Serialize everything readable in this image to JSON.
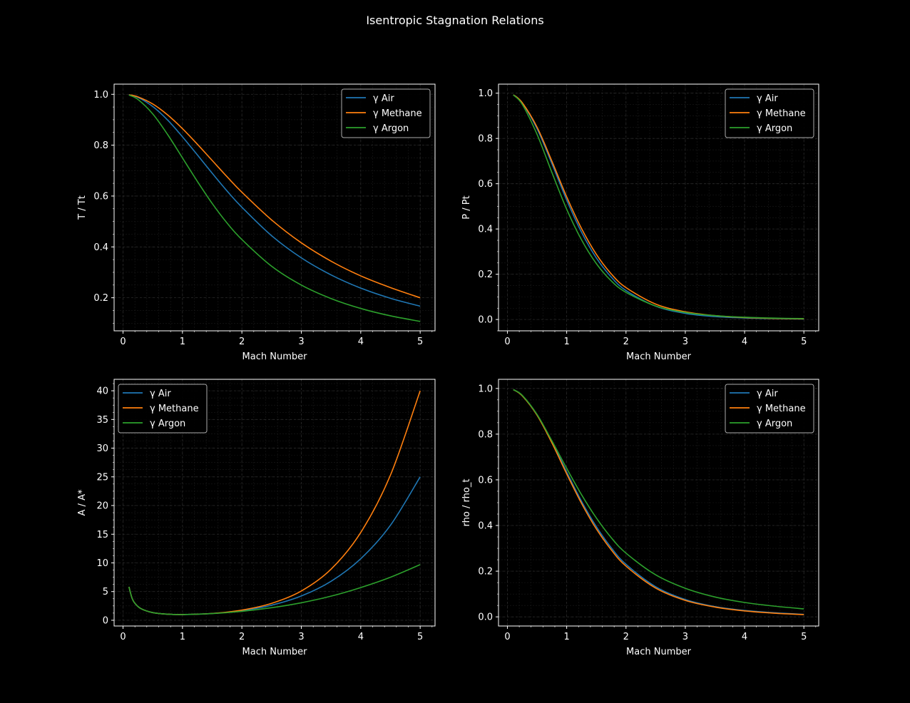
{
  "figure_title": "Isentropic Stagnation Relations",
  "colors": {
    "background": "#000000",
    "foreground": "#ffffff",
    "grid_major": "#2a2a2a",
    "grid_minor": "#1a1a1a",
    "series": [
      "#1f77b4",
      "#ff7f0e",
      "#2ca02c"
    ]
  },
  "chart_data": [
    {
      "type": "line",
      "title": "",
      "xlabel": "Mach Number",
      "ylabel": "T / Tt",
      "xlim": [
        -0.15,
        5.25
      ],
      "ylim": [
        0.07,
        1.04
      ],
      "xticks": [
        0,
        1,
        2,
        3,
        4,
        5
      ],
      "xtick_labels": [
        "0",
        "1",
        "2",
        "3",
        "4",
        "5"
      ],
      "yticks": [
        0.2,
        0.4,
        0.6,
        0.8,
        1.0
      ],
      "ytick_labels": [
        "0.2",
        "0.4",
        "0.6",
        "0.8",
        "1.0"
      ],
      "legend_position": "top-right",
      "grid": true,
      "x": [
        0.1,
        0.25,
        0.5,
        0.75,
        1.0,
        1.25,
        1.5,
        1.75,
        2.0,
        2.5,
        3.0,
        3.5,
        4.0,
        4.5,
        5.0
      ],
      "series": [
        {
          "name": "γ Air",
          "values": [
            0.998,
            0.988,
            0.952,
            0.899,
            0.833,
            0.762,
            0.69,
            0.62,
            0.556,
            0.444,
            0.357,
            0.29,
            0.238,
            0.198,
            0.167
          ]
        },
        {
          "name": "γ Methane",
          "values": [
            0.998,
            0.99,
            0.962,
            0.919,
            0.865,
            0.804,
            0.74,
            0.676,
            0.615,
            0.506,
            0.416,
            0.344,
            0.286,
            0.24,
            0.2
          ]
        },
        {
          "name": "γ Argon",
          "values": [
            0.997,
            0.98,
            0.923,
            0.842,
            0.75,
            0.658,
            0.571,
            0.494,
            0.429,
            0.324,
            0.25,
            0.197,
            0.158,
            0.129,
            0.107
          ]
        }
      ]
    },
    {
      "type": "line",
      "title": "",
      "xlabel": "Mach Number",
      "ylabel": "P / Pt",
      "xlim": [
        -0.15,
        5.25
      ],
      "ylim": [
        -0.05,
        1.04
      ],
      "xticks": [
        0,
        1,
        2,
        3,
        4,
        5
      ],
      "xtick_labels": [
        "0",
        "1",
        "2",
        "3",
        "4",
        "5"
      ],
      "yticks": [
        0.0,
        0.2,
        0.4,
        0.6,
        0.8,
        1.0
      ],
      "ytick_labels": [
        "0.0",
        "0.2",
        "0.4",
        "0.6",
        "0.8",
        "1.0"
      ],
      "legend_position": "top-right",
      "grid": true,
      "x": [
        0.1,
        0.25,
        0.5,
        0.75,
        1.0,
        1.25,
        1.5,
        1.75,
        2.0,
        2.5,
        3.0,
        3.5,
        4.0,
        4.5,
        5.0
      ],
      "series": [
        {
          "name": "γ Air",
          "values": [
            0.993,
            0.957,
            0.843,
            0.689,
            0.528,
            0.386,
            0.272,
            0.188,
            0.128,
            0.059,
            0.027,
            0.013,
            0.007,
            0.004,
            0.002
          ]
        },
        {
          "name": "γ Methane",
          "values": [
            0.993,
            0.958,
            0.85,
            0.7,
            0.542,
            0.402,
            0.288,
            0.202,
            0.141,
            0.068,
            0.034,
            0.017,
            0.009,
            0.005,
            0.003
          ]
        },
        {
          "name": "γ Argon",
          "values": [
            0.992,
            0.951,
            0.818,
            0.65,
            0.487,
            0.352,
            0.247,
            0.171,
            0.12,
            0.06,
            0.031,
            0.017,
            0.01,
            0.006,
            0.004
          ]
        }
      ]
    },
    {
      "type": "line",
      "title": "",
      "xlabel": "Mach Number",
      "ylabel": "A / A*",
      "xlim": [
        -0.15,
        5.25
      ],
      "ylim": [
        -1.0,
        42.0
      ],
      "xticks": [
        0,
        1,
        2,
        3,
        4,
        5
      ],
      "xtick_labels": [
        "0",
        "1",
        "2",
        "3",
        "4",
        "5"
      ],
      "yticks": [
        0,
        5,
        10,
        15,
        20,
        25,
        30,
        35,
        40
      ],
      "ytick_labels": [
        "0",
        "5",
        "10",
        "15",
        "20",
        "25",
        "30",
        "35",
        "40"
      ],
      "legend_position": "top-left",
      "grid": true,
      "x": [
        0.1,
        0.15,
        0.2,
        0.3,
        0.5,
        0.75,
        1.0,
        1.5,
        2.0,
        2.5,
        3.0,
        3.5,
        4.0,
        4.5,
        5.0
      ],
      "series": [
        {
          "name": "γ Air",
          "values": [
            5.82,
            3.91,
            2.96,
            2.04,
            1.34,
            1.06,
            1.0,
            1.18,
            1.69,
            2.63,
            4.23,
            6.79,
            10.72,
            16.56,
            25.0
          ]
        },
        {
          "name": "γ Methane",
          "values": [
            5.82,
            3.91,
            2.96,
            2.04,
            1.34,
            1.06,
            1.0,
            1.19,
            1.78,
            2.95,
            5.1,
            8.9,
            15.3,
            25.3,
            40.0
          ]
        },
        {
          "name": "γ Argon",
          "values": [
            5.82,
            3.91,
            2.96,
            2.04,
            1.34,
            1.06,
            1.0,
            1.17,
            1.56,
            2.19,
            3.05,
            4.2,
            5.7,
            7.5,
            9.7
          ]
        }
      ]
    },
    {
      "type": "line",
      "title": "",
      "xlabel": "Mach Number",
      "ylabel": "rho / rho_t",
      "xlim": [
        -0.15,
        5.25
      ],
      "ylim": [
        -0.04,
        1.04
      ],
      "xticks": [
        0,
        1,
        2,
        3,
        4,
        5
      ],
      "xtick_labels": [
        "0",
        "1",
        "2",
        "3",
        "4",
        "5"
      ],
      "yticks": [
        0.0,
        0.2,
        0.4,
        0.6,
        0.8,
        1.0
      ],
      "ytick_labels": [
        "0.0",
        "0.2",
        "0.4",
        "0.6",
        "0.8",
        "1.0"
      ],
      "legend_position": "top-right",
      "grid": true,
      "x": [
        0.1,
        0.25,
        0.5,
        0.75,
        1.0,
        1.25,
        1.5,
        1.75,
        2.0,
        2.5,
        3.0,
        3.5,
        4.0,
        4.5,
        5.0
      ],
      "series": [
        {
          "name": "γ Air",
          "values": [
            0.995,
            0.969,
            0.885,
            0.767,
            0.634,
            0.506,
            0.395,
            0.303,
            0.23,
            0.132,
            0.076,
            0.045,
            0.028,
            0.018,
            0.011
          ]
        },
        {
          "name": "γ Methane",
          "values": [
            0.995,
            0.968,
            0.883,
            0.762,
            0.626,
            0.497,
            0.385,
            0.294,
            0.222,
            0.126,
            0.072,
            0.043,
            0.026,
            0.016,
            0.01
          ]
        },
        {
          "name": "γ Argon",
          "values": [
            0.995,
            0.97,
            0.886,
            0.771,
            0.65,
            0.535,
            0.433,
            0.347,
            0.279,
            0.184,
            0.125,
            0.087,
            0.063,
            0.047,
            0.035
          ]
        }
      ]
    }
  ]
}
